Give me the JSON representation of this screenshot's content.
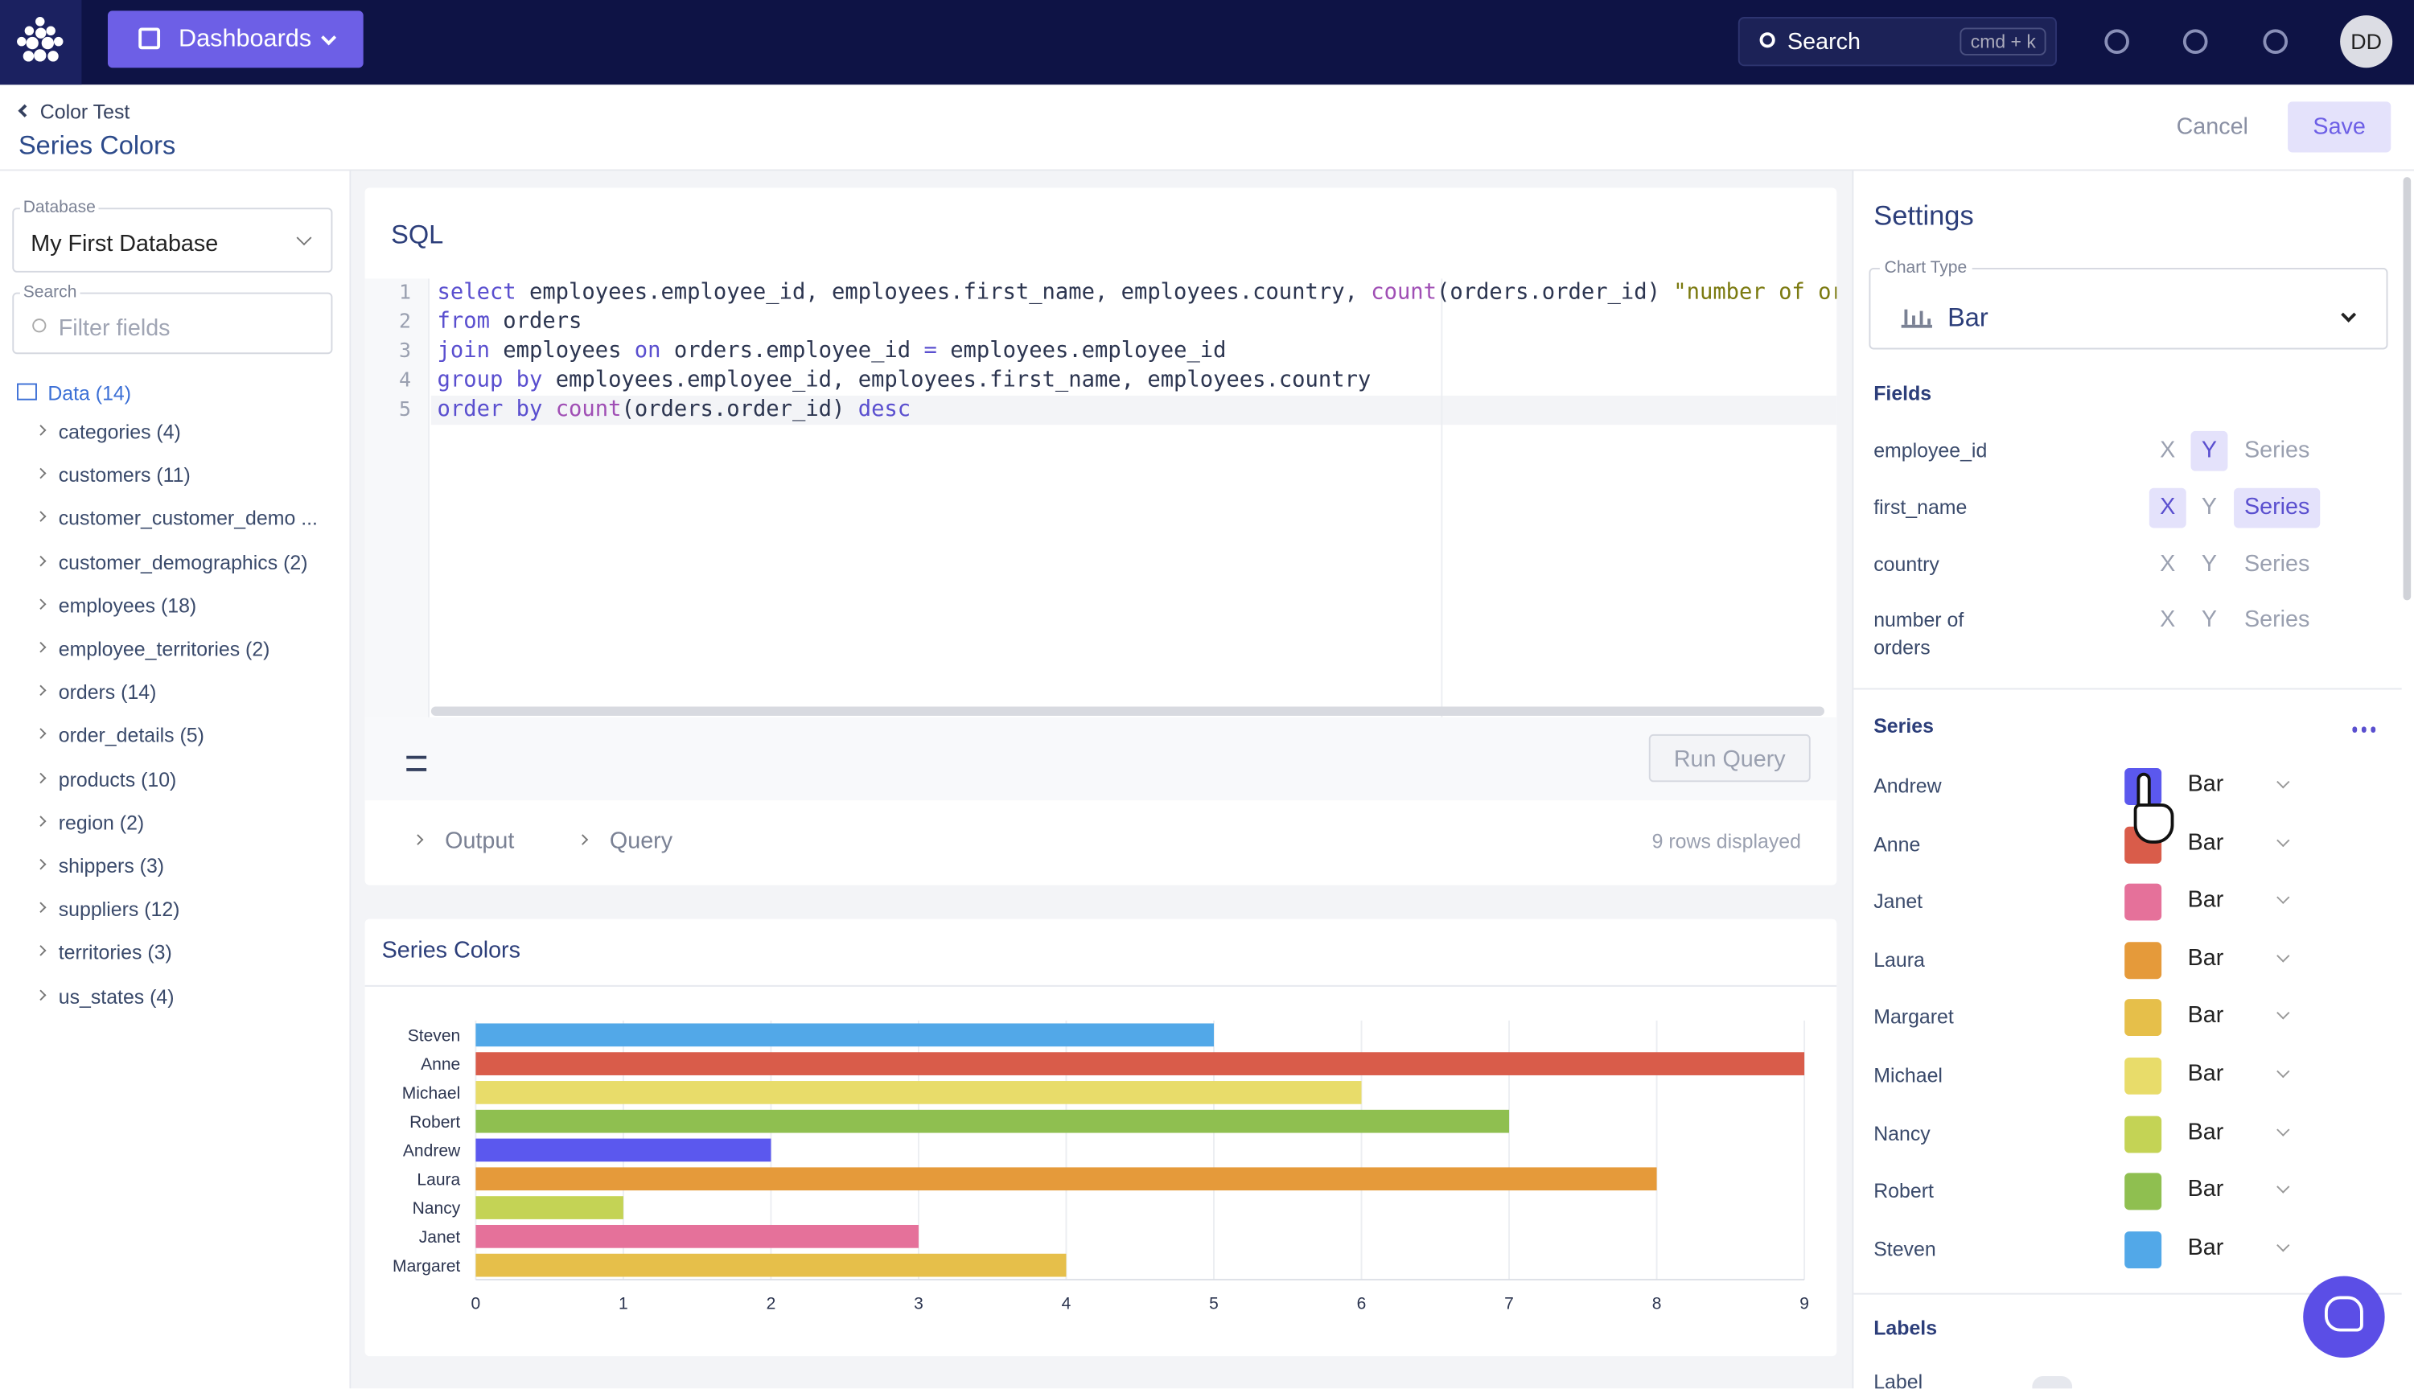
{
  "nav": {
    "menu": "Dashboards",
    "search": "Search",
    "shortcut": "cmd + k",
    "avatar": "DD"
  },
  "header": {
    "breadcrumb": "Color Test",
    "title": "Series Colors",
    "cancel": "Cancel",
    "save": "Save"
  },
  "sidebar": {
    "database_label": "Database",
    "database": "My First Database",
    "search_label": "Search",
    "search_placeholder": "Filter fields",
    "tree_root": "Data (14)",
    "tables": [
      "categories (4)",
      "customers (11)",
      "customer_customer_demo ...",
      "customer_demographics (2)",
      "employees (18)",
      "employee_territories (2)",
      "orders (14)",
      "order_details (5)",
      "products (10)",
      "region (2)",
      "shippers (3)",
      "suppliers (12)",
      "territories (3)",
      "us_states (4)"
    ]
  },
  "editor": {
    "title": "SQL",
    "line_numbers": [
      "1",
      "2",
      "3",
      "4",
      "5"
    ],
    "lines": [
      "select employees.employee_id, employees.first_name, employees.country, count(orders.order_id) \"number of orders\"",
      "from orders",
      "join employees on orders.employee_id = employees.employee_id",
      "group by employees.employee_id, employees.first_name, employees.country",
      "order by count(orders.order_id) desc"
    ],
    "run": "Run Query",
    "tabs": [
      "Output",
      "Query"
    ],
    "status": "9 rows displayed"
  },
  "chart_data": {
    "type": "bar",
    "orientation": "horizontal",
    "title": "Series Colors",
    "categories": [
      "Steven",
      "Anne",
      "Michael",
      "Robert",
      "Andrew",
      "Laura",
      "Nancy",
      "Janet",
      "Margaret"
    ],
    "values": [
      5,
      9,
      6,
      7,
      2,
      8,
      1,
      3,
      4
    ],
    "colors": [
      "#52a8e8",
      "#d95c4a",
      "#e8dc6a",
      "#8fbf50",
      "#5b58ee",
      "#e59a3a",
      "#c4d355",
      "#e5719a",
      "#e6bf4a"
    ],
    "xlim": [
      0,
      9
    ],
    "xticks": [
      0,
      1,
      2,
      3,
      4,
      5,
      6,
      7,
      8,
      9
    ],
    "grid": true
  },
  "settings": {
    "title": "Settings",
    "chart_type_label": "Chart Type",
    "chart_type": "Bar",
    "fields_title": "Fields",
    "field_options": [
      "X",
      "Y",
      "Series"
    ],
    "fields": [
      {
        "name": "employee_id",
        "selected": [
          "Y"
        ]
      },
      {
        "name": "first_name",
        "selected": [
          "X",
          "Series"
        ]
      },
      {
        "name": "country",
        "selected": []
      },
      {
        "name": "number of orders",
        "selected": []
      }
    ],
    "series_title": "Series",
    "series": [
      {
        "name": "Andrew",
        "color": "#5b58ee",
        "type": "Bar"
      },
      {
        "name": "Anne",
        "color": "#d95c4a",
        "type": "Bar"
      },
      {
        "name": "Janet",
        "color": "#e5719a",
        "type": "Bar"
      },
      {
        "name": "Laura",
        "color": "#e59a3a",
        "type": "Bar"
      },
      {
        "name": "Margaret",
        "color": "#e6bf4a",
        "type": "Bar"
      },
      {
        "name": "Michael",
        "color": "#e8dc6a",
        "type": "Bar"
      },
      {
        "name": "Nancy",
        "color": "#c4d355",
        "type": "Bar"
      },
      {
        "name": "Robert",
        "color": "#8fbf50",
        "type": "Bar"
      },
      {
        "name": "Steven",
        "color": "#52a8e8",
        "type": "Bar"
      }
    ],
    "labels_title": "Labels",
    "label": "Label"
  }
}
